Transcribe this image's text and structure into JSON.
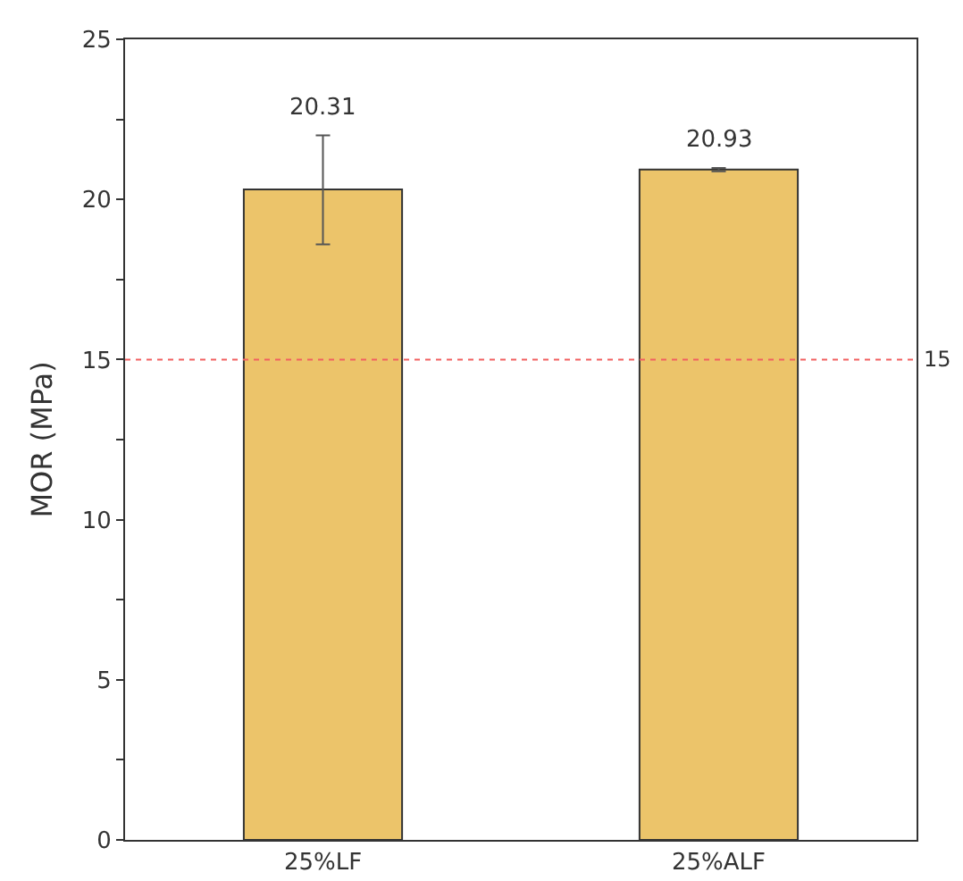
{
  "chart_data": {
    "type": "bar",
    "ylabel": "MOR (MPa)",
    "categories": [
      "25%LF",
      "25%ALF"
    ],
    "values": [
      20.31,
      20.93
    ],
    "color": "#ecc46a",
    "errors": [
      [
        18.6,
        22.0
      ],
      [
        20.88,
        20.98
      ]
    ],
    "data_labels": true,
    "ylim": [
      0,
      25
    ],
    "yticks": [
      0,
      {
        "value": 2.5,
        "label": null
      },
      5,
      {
        "value": 7.5,
        "label": null
      },
      10,
      {
        "value": 12.5,
        "label": null
      },
      15,
      {
        "value": 17.5,
        "label": null
      },
      20,
      {
        "value": 22.5,
        "label": null
      },
      25
    ],
    "ref_lines": [
      {
        "axis": "y",
        "value": 15,
        "label": "15",
        "color": "#f26060",
        "line_style": "dotted"
      }
    ]
  }
}
